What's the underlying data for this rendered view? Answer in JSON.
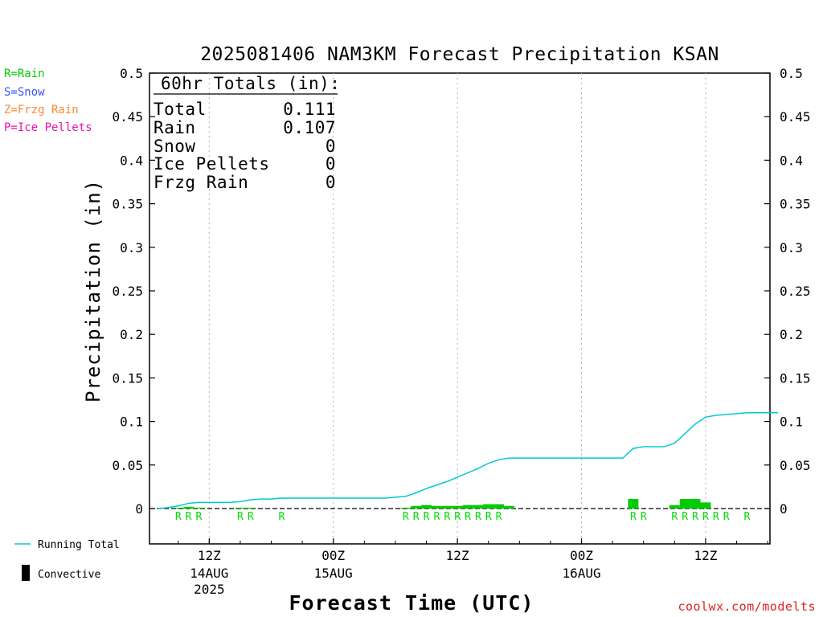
{
  "chart_data": {
    "type": "bar",
    "title": "2025081406 NAM3KM Forecast Precipitation KSAN",
    "xlabel": "Forecast Time (UTC)",
    "ylabel": "Precipitation (in)",
    "ylim": [
      0,
      0.5
    ],
    "y_ticks": [
      "0",
      "0.05",
      "0.1",
      "0.15",
      "0.2",
      "0.25",
      "0.3",
      "0.35",
      "0.4",
      "0.45",
      "0.5"
    ],
    "x_range_hours": [
      1,
      61
    ],
    "x_ticks": [
      {
        "hour": 6,
        "label": "12Z",
        "sub1": "14AUG",
        "sub2": "2025"
      },
      {
        "hour": 18,
        "label": "00Z",
        "sub1": "15AUG",
        "sub2": ""
      },
      {
        "hour": 30,
        "label": "12Z",
        "sub1": "",
        "sub2": ""
      },
      {
        "hour": 42,
        "label": "00Z",
        "sub1": "16AUG",
        "sub2": ""
      },
      {
        "hour": 54,
        "label": "12Z",
        "sub1": "",
        "sub2": ""
      }
    ],
    "grid": "vertical-dotted",
    "series": [
      {
        "name": "Running Total",
        "type": "line",
        "color": "#00c8d2",
        "hours": [
          1,
          2,
          3,
          4,
          5,
          6,
          7,
          8,
          9,
          10,
          11,
          12,
          13,
          14,
          15,
          16,
          17,
          18,
          19,
          20,
          21,
          22,
          23,
          24,
          25,
          26,
          27,
          28,
          29,
          30,
          31,
          32,
          33,
          34,
          35,
          36,
          37,
          38,
          39,
          40,
          41,
          42,
          43,
          44,
          45,
          46,
          47,
          48,
          49,
          50,
          51,
          52,
          53,
          54,
          55,
          56,
          57,
          58,
          59,
          60,
          61
        ],
        "values": [
          0,
          0.001,
          0.003,
          0.006,
          0.007,
          0.007,
          0.007,
          0.007,
          0.008,
          0.01,
          0.011,
          0.011,
          0.012,
          0.012,
          0.012,
          0.012,
          0.012,
          0.012,
          0.012,
          0.012,
          0.012,
          0.012,
          0.012,
          0.013,
          0.014,
          0.018,
          0.023,
          0.027,
          0.031,
          0.036,
          0.041,
          0.046,
          0.052,
          0.056,
          0.058,
          0.058,
          0.058,
          0.058,
          0.058,
          0.058,
          0.058,
          0.058,
          0.058,
          0.058,
          0.058,
          0.058,
          0.069,
          0.071,
          0.071,
          0.071,
          0.075,
          0.086,
          0.097,
          0.105,
          0.107,
          0.108,
          0.109,
          0.11,
          0.11,
          0.11,
          0.11
        ]
      },
      {
        "name": "Rain",
        "type": "bar",
        "color": "#00cc00",
        "hours": [
          3,
          4,
          5,
          9,
          10,
          25,
          26,
          27,
          28,
          29,
          30,
          31,
          32,
          33,
          34,
          35,
          47,
          51,
          52,
          53,
          54
        ],
        "values": [
          0.001,
          0.002,
          0.001,
          0.001,
          0.001,
          0.001,
          0.003,
          0.004,
          0.003,
          0.003,
          0.003,
          0.004,
          0.004,
          0.005,
          0.005,
          0.003,
          0.011,
          0.004,
          0.011,
          0.011,
          0.007
        ]
      }
    ],
    "precip_type_markers": [
      {
        "hour": 3,
        "type": "R"
      },
      {
        "hour": 4,
        "type": "R"
      },
      {
        "hour": 5,
        "type": "R"
      },
      {
        "hour": 9,
        "type": "R"
      },
      {
        "hour": 10,
        "type": "R"
      },
      {
        "hour": 13,
        "type": "R"
      },
      {
        "hour": 25,
        "type": "R"
      },
      {
        "hour": 26,
        "type": "R"
      },
      {
        "hour": 27,
        "type": "R"
      },
      {
        "hour": 28,
        "type": "R"
      },
      {
        "hour": 29,
        "type": "R"
      },
      {
        "hour": 30,
        "type": "R"
      },
      {
        "hour": 31,
        "type": "R"
      },
      {
        "hour": 32,
        "type": "R"
      },
      {
        "hour": 33,
        "type": "R"
      },
      {
        "hour": 34,
        "type": "R"
      },
      {
        "hour": 47,
        "type": "R"
      },
      {
        "hour": 48,
        "type": "R"
      },
      {
        "hour": 51,
        "type": "R"
      },
      {
        "hour": 52,
        "type": "R"
      },
      {
        "hour": 53,
        "type": "R"
      },
      {
        "hour": 54,
        "type": "R"
      },
      {
        "hour": 55,
        "type": "R"
      },
      {
        "hour": 56,
        "type": "R"
      },
      {
        "hour": 58,
        "type": "R"
      }
    ]
  },
  "totals_box": {
    "header": "60hr Totals (in):",
    "rows": [
      {
        "label": "Total",
        "value": "0.111"
      },
      {
        "label": "Rain",
        "value": "0.107"
      },
      {
        "label": "Snow",
        "value": "0"
      },
      {
        "label": "Ice Pellets",
        "value": "0"
      },
      {
        "label": "Frzg Rain",
        "value": "0"
      }
    ]
  },
  "type_legend": [
    {
      "text": "R=Rain",
      "color": "#00cc00"
    },
    {
      "text": "S=Snow",
      "color": "#3355ff"
    },
    {
      "text": "Z=Frzg Rain",
      "color": "#ff8833"
    },
    {
      "text": "P=Ice Pellets",
      "color": "#ee11aa"
    }
  ],
  "line_legend": {
    "running_total": "Running Total",
    "convective": "Convective"
  },
  "credit": "coolwx.com/modelts"
}
